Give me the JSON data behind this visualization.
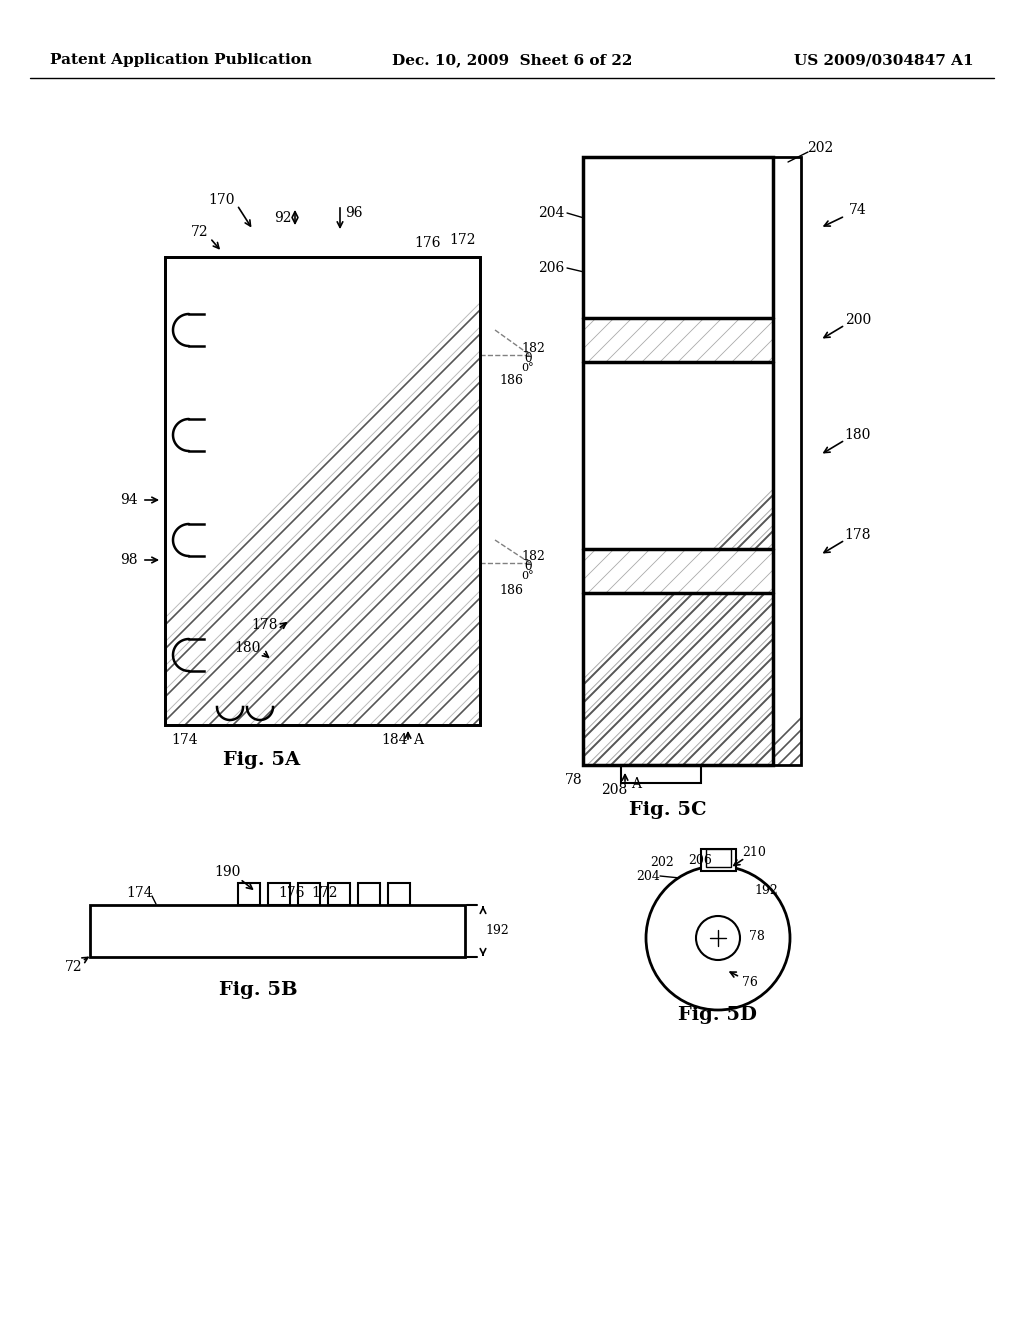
{
  "header_left": "Patent Application Publication",
  "header_mid": "Dec. 10, 2009  Sheet 6 of 22",
  "header_right": "US 2009/0304847 A1",
  "fig5a_label": "Fig. 5A",
  "fig5b_label": "Fig. 5B",
  "fig5c_label": "Fig. 5C",
  "fig5d_label": "Fig. 5D",
  "bg": "#ffffff"
}
